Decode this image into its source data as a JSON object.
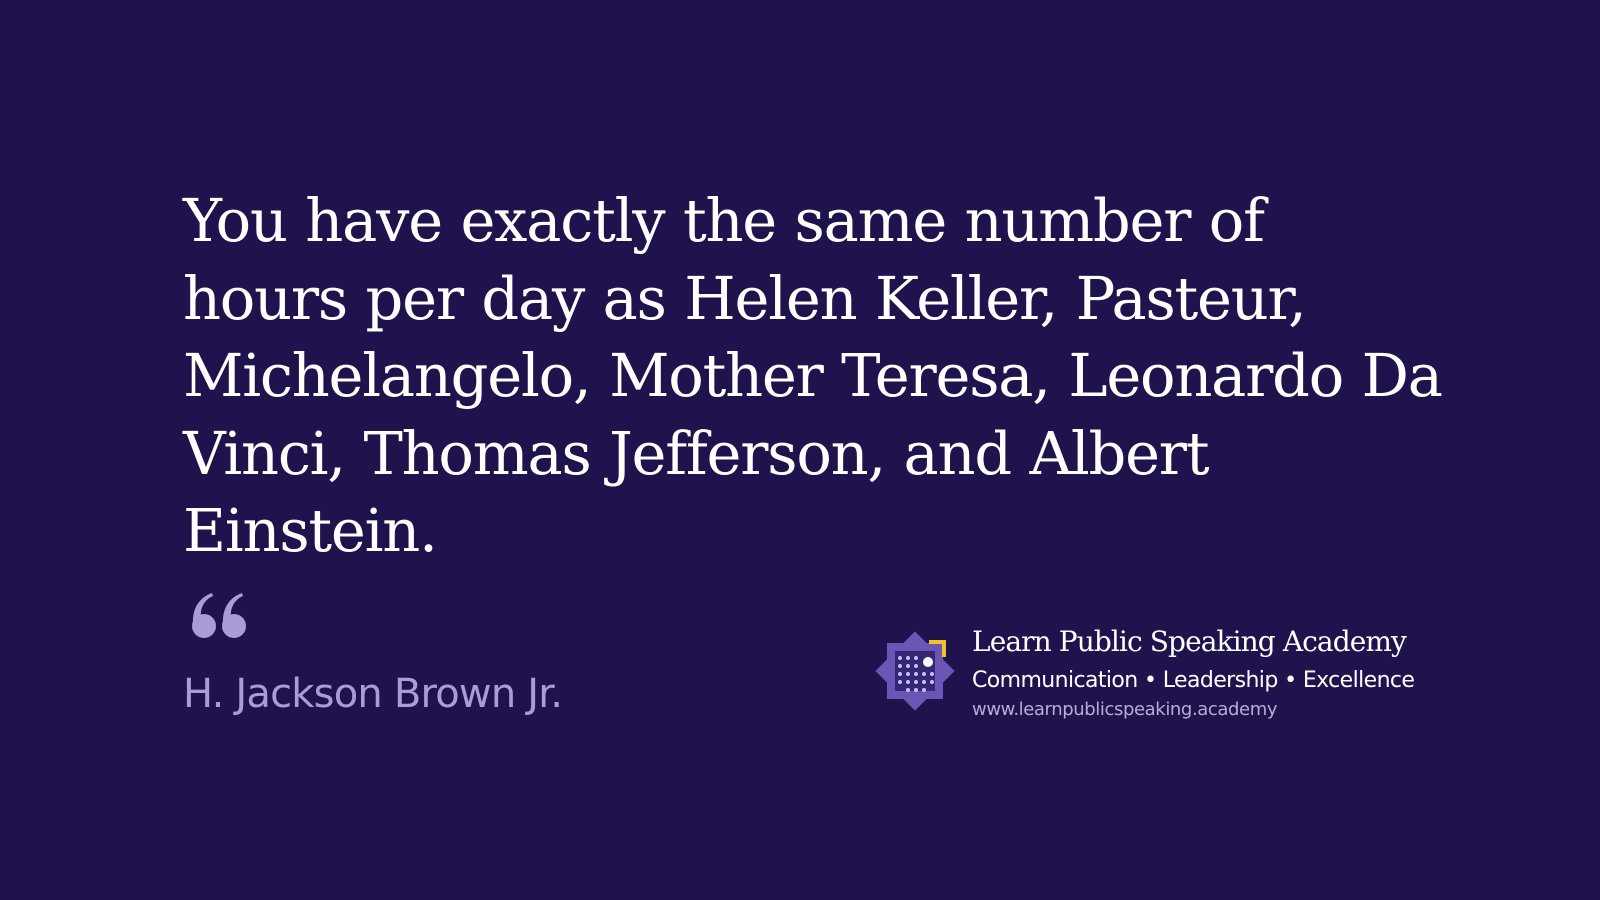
{
  "quote": {
    "text": "You have exactly the same number of hours per day as Helen Keller, Pasteur, Michelangelo, Mother Teresa, Leonardo Da Vinci, Thomas Jefferson, and Albert Einstein.",
    "author": "H. Jackson Brown Jr.",
    "quote_icon": "opening-quote-icon"
  },
  "brand": {
    "name": "Learn Public Speaking Academy",
    "tagline": "Communication • Leadership • Excellence",
    "url": "www.learnpublicspeaking.academy",
    "logo_icon": "academy-logo-icon"
  },
  "colors": {
    "background": "#20134d",
    "text": "#ffffff",
    "author": "#ab9bd6",
    "logo_purple": "#6b55b5",
    "logo_gold": "#f2c12e"
  }
}
